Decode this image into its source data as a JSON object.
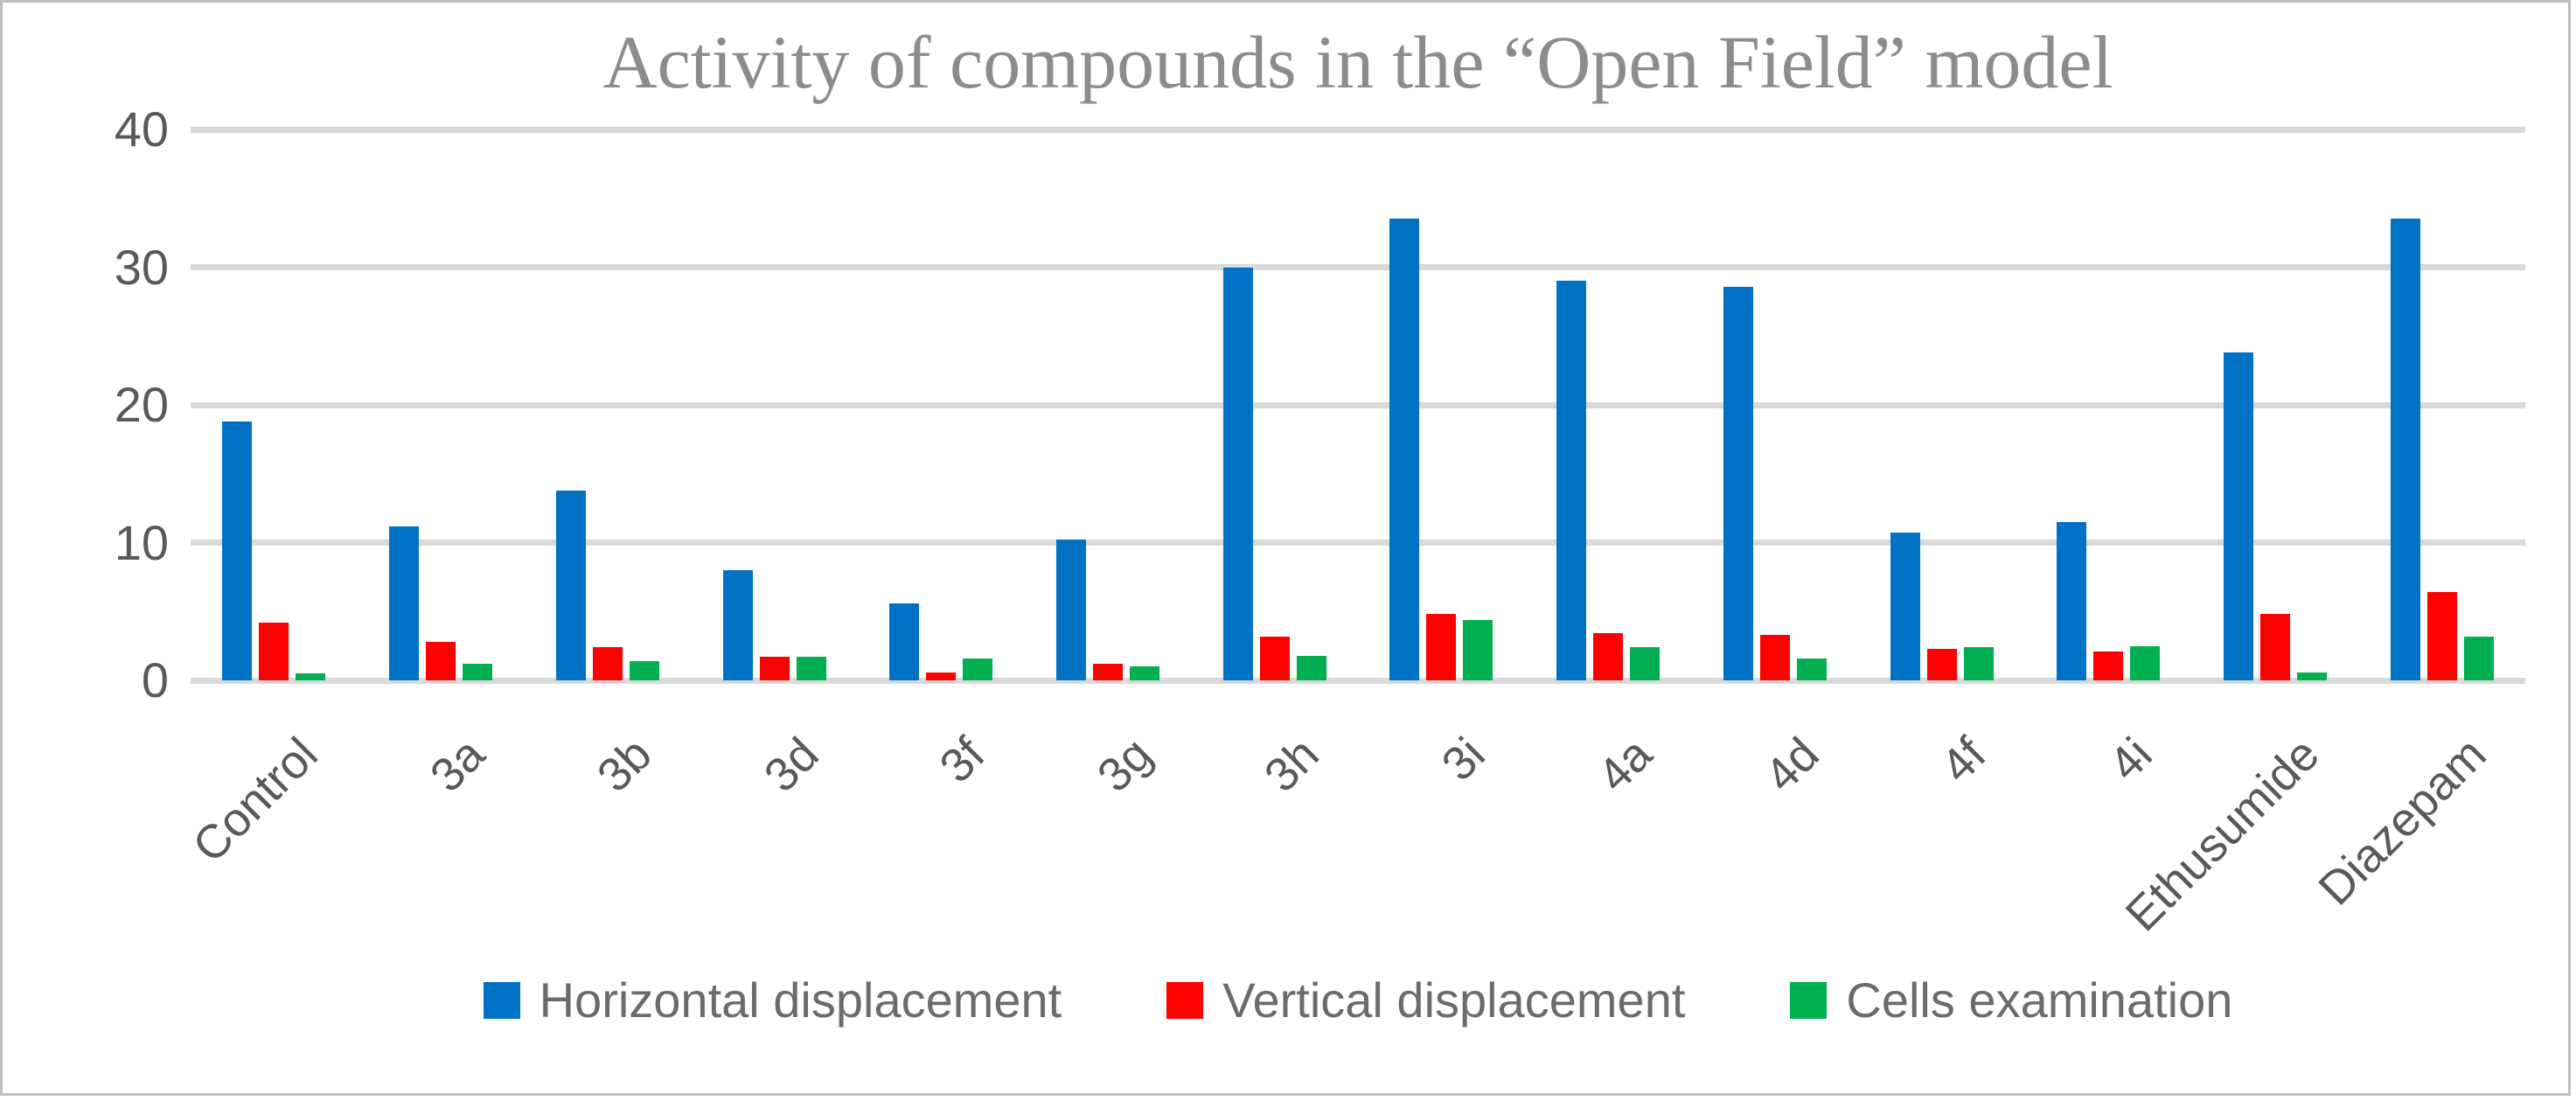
{
  "title": "Activity of compounds in the “Open Field” model",
  "chart_data": {
    "type": "bar",
    "title": "Activity of compounds in the “Open Field” model",
    "categories": [
      "Control",
      "3a",
      "3b",
      "3d",
      "3f",
      "3g",
      "3h",
      "3i",
      "4a",
      "4d",
      "4f",
      "4i",
      "Ethusumide",
      "Diazepam"
    ],
    "series": [
      {
        "name": "Horizontal displacement",
        "color": "#0072C6",
        "values": [
          18.8,
          11.2,
          13.8,
          8.0,
          5.6,
          10.2,
          30.0,
          33.5,
          29.0,
          28.6,
          10.7,
          11.5,
          23.8,
          33.5
        ]
      },
      {
        "name": "Vertical displacement",
        "color": "#FF0000",
        "values": [
          4.2,
          2.8,
          2.4,
          1.7,
          0.6,
          1.2,
          3.2,
          4.8,
          3.4,
          3.3,
          2.3,
          2.1,
          4.8,
          6.4
        ]
      },
      {
        "name": "Cells examination",
        "color": "#00B050",
        "values": [
          0.5,
          1.2,
          1.4,
          1.7,
          1.6,
          1.0,
          1.8,
          4.4,
          2.4,
          1.6,
          2.4,
          2.5,
          0.6,
          3.2
        ]
      }
    ],
    "xlabel": "",
    "ylabel": "",
    "ylim": [
      0,
      40
    ],
    "yticks": [
      0,
      10,
      20,
      30,
      40
    ],
    "grid": true,
    "legend_position": "bottom"
  },
  "style": {
    "gridline_color": "#d9d9d9",
    "axis_text_color": "#595959",
    "title_color": "#8c8c8c",
    "frame_border_color": "#bfbfbf"
  }
}
